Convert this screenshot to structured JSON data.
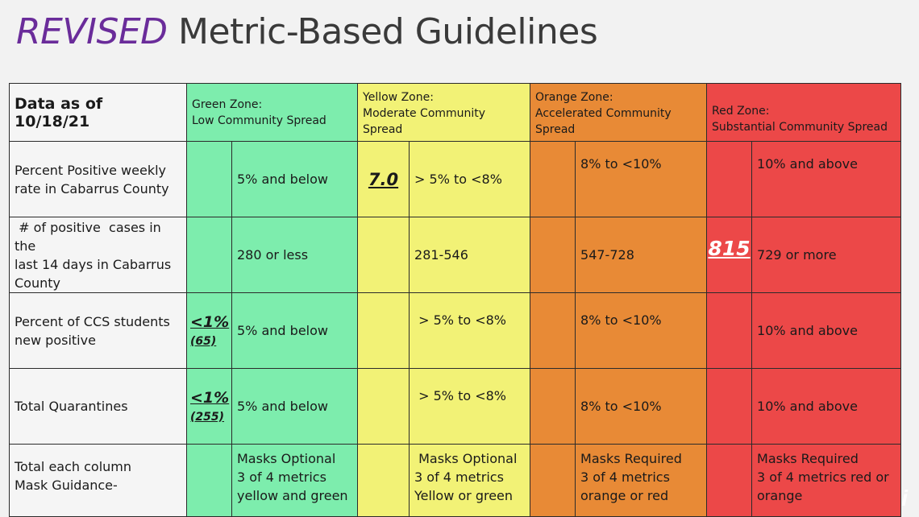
{
  "title": {
    "revised": "REVISED",
    "rest": " Metric-Based Guidelines"
  },
  "header": {
    "label": "Data as of 10/18/21",
    "green": "Green Zone:\nLow Community Spread",
    "yellow": "Yellow Zone:\nModerate Community\nSpread",
    "orange": "Orange Zone:\nAccelerated Community\nSpread",
    "red": "Red Zone:\nSubstantial Community Spread"
  },
  "rows": [
    {
      "label": "Percent Positive weekly\nrate in Cabarrus County",
      "green_mark": "",
      "green": "5% and below",
      "yellow_mark": "7.0",
      "yellow": "> 5% to <8%",
      "orange_mark": "",
      "orange": "8% to <10%",
      "red_mark": "",
      "red": "10% and above"
    },
    {
      "label": " # of positive  cases in the\nlast 14 days in Cabarrus\nCounty",
      "green_mark": "",
      "green": "280 or less",
      "yellow_mark": "",
      "yellow": "281-546",
      "orange_mark": "",
      "orange": "547-728",
      "red_mark": "815",
      "red": "729 or more"
    },
    {
      "label": "Percent of CCS students\nnew positive",
      "green_mark": "<1%",
      "green_sub": "(65)",
      "green": "5% and below",
      "yellow_mark": "",
      "yellow": " > 5% to <8%",
      "orange_mark": "",
      "orange": "8% to <10%",
      "red_mark": "",
      "red": "10% and above"
    },
    {
      "label": "Total Quarantines",
      "green_mark": "<1%",
      "green_sub": "(255)",
      "green": "5% and below",
      "yellow_mark": "",
      "yellow": " > 5% to <8%",
      "orange_mark": "",
      "orange": "8% to <10%",
      "red_mark": "",
      "red": "10% and above"
    },
    {
      "label": "Total each column\nMask Guidance-",
      "green_mark": "",
      "green": "Masks Optional\n3 of 4 metrics\nyellow and green",
      "yellow_mark": "",
      "yellow": " Masks Optional\n3 of 4 metrics\nYellow or green",
      "orange_mark": "",
      "orange": "Masks Required\n3 of 4 metrics\norange or red",
      "red_mark": "",
      "red": "Masks Required\n3 of 4 metrics red or\norange"
    }
  ],
  "colors": {
    "green": "#7dedad",
    "yellow": "#f2f276",
    "orange": "#e88a36",
    "red": "#ec4848",
    "title_accent": "#6a2c9a"
  }
}
